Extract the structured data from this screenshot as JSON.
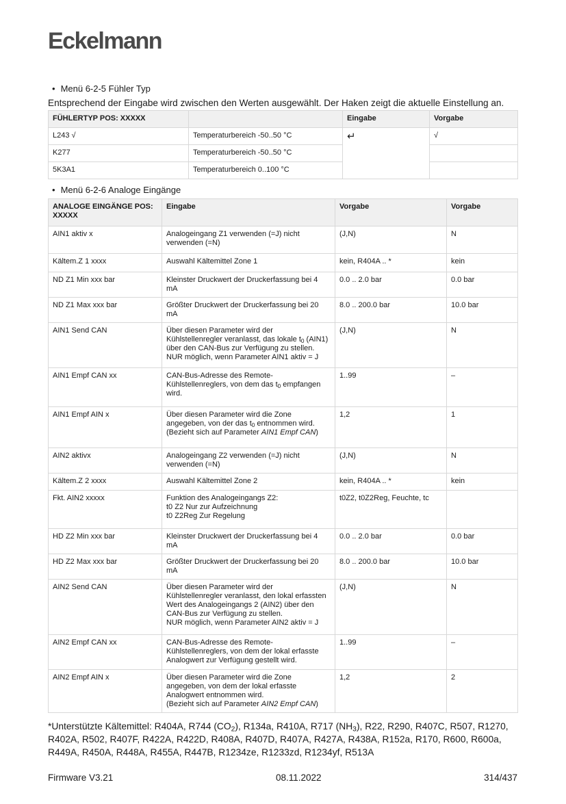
{
  "logo": "Eckelmann",
  "section1": {
    "title": "Menü 6-2-5 Fühler Typ",
    "intro": "Entsprechend der Eingabe wird zwischen den Werten ausgewählt. Der Haken zeigt die aktuelle Einstellung an.",
    "headers": [
      "FÜHLERTYP POS: XXXXX",
      "",
      "Eingabe",
      "Vorgabe"
    ],
    "rows": [
      [
        "L243 √",
        "Temperaturbereich -50..50 °C",
        "↵",
        "√"
      ],
      [
        "K277",
        "Temperaturbereich -50..50 °C",
        "",
        ""
      ],
      [
        "5K3A1",
        "Temperaturbereich 0..100 °C",
        "",
        ""
      ]
    ]
  },
  "section2": {
    "title": "Menü 6-2-6 Analoge Eingänge",
    "headers": [
      "ANALOGE EINGÄNGE POS: XXXXX",
      "Eingabe",
      "Vorgabe",
      "Vorgabe"
    ],
    "rows": [
      [
        [
          {
            "t": "AIN1 aktiv x"
          }
        ],
        [
          {
            "t": "Analogeingang Z1 verwenden (=J) nicht verwenden (=N)"
          }
        ],
        [
          {
            "t": "(J,N)"
          }
        ],
        [
          {
            "t": "N"
          }
        ]
      ],
      [
        [
          {
            "t": "Kältem.Z 1 xxxx"
          }
        ],
        [
          {
            "t": "Auswahl Kältemittel Zone 1"
          }
        ],
        [
          {
            "t": "kein, R404A .. *"
          }
        ],
        [
          {
            "t": "kein"
          }
        ]
      ],
      [
        [
          {
            "t": "ND Z1 Min xxx bar"
          }
        ],
        [
          {
            "t": "Kleinster Druckwert der Druckerfassung bei 4 mA"
          }
        ],
        [
          {
            "t": "0.0 .. 2.0 bar"
          }
        ],
        [
          {
            "t": "0.0 bar"
          }
        ]
      ],
      [
        [
          {
            "t": "ND Z1 Max xxx bar"
          }
        ],
        [
          {
            "t": "Größter Druckwert der Druckerfassung bei 20 mA"
          }
        ],
        [
          {
            "t": "8.0 .. 200.0 bar"
          }
        ],
        [
          {
            "t": "10.0 bar"
          }
        ]
      ],
      [
        [
          {
            "t": "AIN1 Send CAN"
          }
        ],
        [
          {
            "t": "Über diesen Parameter wird der Kühlstellenregler veranlasst, das lokale t"
          },
          {
            "t": "0",
            "sub": true
          },
          {
            "t": " (AIN1) über den CAN-Bus zur Verfügung zu stellen."
          },
          {
            "br": true
          },
          {
            "t": "NUR möglich, wenn Parameter AIN1 aktiv = J"
          }
        ],
        [
          {
            "t": "(J,N)"
          }
        ],
        [
          {
            "t": "N"
          }
        ]
      ],
      [
        [
          {
            "t": "AIN1 Empf CAN xx"
          }
        ],
        [
          {
            "t": "CAN-Bus-Adresse des Remote-Kühlstellenreglers, von dem das t"
          },
          {
            "t": "0",
            "sub": true
          },
          {
            "t": " empfangen wird."
          }
        ],
        [
          {
            "t": "1..99"
          }
        ],
        [
          {
            "t": "–"
          }
        ]
      ],
      [
        [
          {
            "t": "AIN1 Empf AIN x"
          }
        ],
        [
          {
            "t": "Über diesen Parameter wird die Zone angegeben, von der das t"
          },
          {
            "t": "0",
            "sub": true
          },
          {
            "t": " entnommen wird."
          },
          {
            "br": true
          },
          {
            "t": "(Bezieht sich auf Parameter "
          },
          {
            "t": "AIN1 Empf CAN",
            "i": true
          },
          {
            "t": ")"
          }
        ],
        [
          {
            "t": "1,2"
          }
        ],
        [
          {
            "t": "1"
          }
        ]
      ],
      [
        [
          {
            "t": "AIN2 aktivx"
          }
        ],
        [
          {
            "t": "Analogeingang Z2 verwenden (=J) nicht verwenden (=N)"
          }
        ],
        [
          {
            "t": "(J,N)"
          }
        ],
        [
          {
            "t": "N"
          }
        ]
      ],
      [
        [
          {
            "t": "Kältem.Z 2 xxxx"
          }
        ],
        [
          {
            "t": "Auswahl Kältemittel Zone 2"
          }
        ],
        [
          {
            "t": "kein, R404A .. *"
          }
        ],
        [
          {
            "t": "kein"
          }
        ]
      ],
      [
        [
          {
            "t": "Fkt. AIN2 xxxxx"
          }
        ],
        [
          {
            "t": "Funktion des Analogeingangs Z2:"
          },
          {
            "br": true
          },
          {
            "t": "t0 Z2 Nur zur Aufzeichnung"
          },
          {
            "br": true
          },
          {
            "t": "t0 Z2Reg Zur Regelung"
          }
        ],
        [
          {
            "t": "t0Z2, t0Z2Reg, Feuchte, tc"
          }
        ],
        [
          {
            "t": ""
          }
        ]
      ],
      [
        [
          {
            "t": "HD Z2 Min xxx bar"
          }
        ],
        [
          {
            "t": "Kleinster Druckwert der Druckerfassung bei 4 mA"
          }
        ],
        [
          {
            "t": "0.0 .. 2.0 bar"
          }
        ],
        [
          {
            "t": "0.0 bar"
          }
        ]
      ],
      [
        [
          {
            "t": "HD Z2 Max xxx bar"
          }
        ],
        [
          {
            "t": "Größter Druckwert der Druckerfassung bei 20 mA"
          }
        ],
        [
          {
            "t": "8.0 .. 200.0 bar"
          }
        ],
        [
          {
            "t": "10.0 bar"
          }
        ]
      ],
      [
        [
          {
            "t": "AIN2 Send CAN"
          }
        ],
        [
          {
            "t": "Über diesen Parameter wird der Kühlstellenregler veranlasst, den lokal erfassten Wert des Analogeingangs 2 (AIN2) über den CAN-Bus zur Verfügung zu stellen."
          },
          {
            "br": true
          },
          {
            "t": "NUR möglich, wenn Parameter AIN2 aktiv = J"
          }
        ],
        [
          {
            "t": "(J,N)"
          }
        ],
        [
          {
            "t": "N"
          }
        ]
      ],
      [
        [
          {
            "t": "AIN2 Empf CAN xx"
          }
        ],
        [
          {
            "t": "CAN-Bus-Adresse des Remote-Kühlstellenreglers, von dem der lokal erfasste Analogwert zur Verfügung gestellt wird."
          }
        ],
        [
          {
            "t": "1..99"
          }
        ],
        [
          {
            "t": "–"
          }
        ]
      ],
      [
        [
          {
            "t": "AIN2 Empf AIN x"
          }
        ],
        [
          {
            "t": "Über diesen Parameter wird die Zone angegeben, von dem der lokal erfasste Analogwert entnommen wird."
          },
          {
            "br": true
          },
          {
            "t": "(Bezieht sich auf Parameter "
          },
          {
            "t": "AIN2 Empf CAN",
            "i": true
          },
          {
            "t": ")"
          }
        ],
        [
          {
            "t": "1,2"
          }
        ],
        [
          {
            "t": "2"
          }
        ]
      ]
    ]
  },
  "footnote": [
    {
      "t": "*Unterstützte Kältemittel: R404A, R744 (CO"
    },
    {
      "t": "2",
      "sub": true
    },
    {
      "t": "), R134a, R410A, R717 (NH"
    },
    {
      "t": "3",
      "sub": true
    },
    {
      "t": "), R22, R290, R407C, R507, R1270, R402A, R502, R407F, R422A, R422D, R408A, R407D, R407A, R427A, R438A, R152a, R170, R600, R600a, R449A, R450A, R448A, R455A, R447B, R1234ze, R1233zd, R1234yf, R513A"
    }
  ],
  "footer": {
    "left": "Firmware V3.21",
    "center": "08.11.2022",
    "right": "314/437"
  }
}
